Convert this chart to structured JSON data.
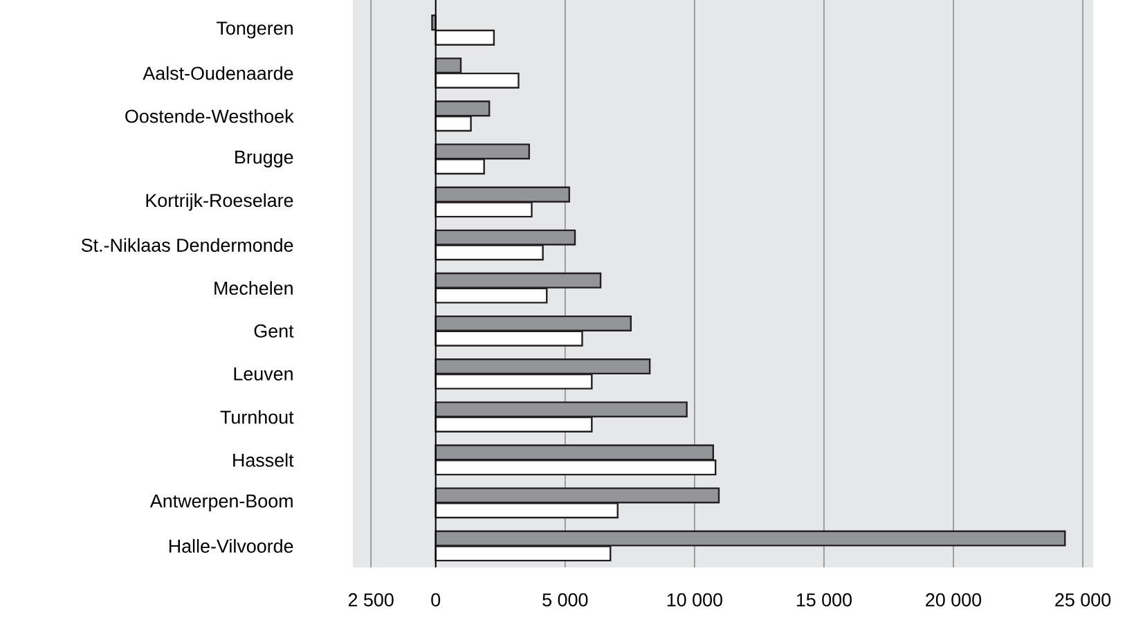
{
  "chart_data": {
    "type": "bar",
    "orientation": "horizontal",
    "categories": [
      "Tongeren",
      "Aalst-Oudenaarde",
      "Oostende-Westhoek",
      "Brugge",
      "Kortrijk-Roeselare",
      "St.-Niklaas Dendermonde",
      "Mechelen",
      "Gent",
      "Leuven",
      "Turnhout",
      "Hasselt",
      "Antwerpen-Boom",
      "Halle-Vilvoorde"
    ],
    "series": [
      {
        "color": "#939598",
        "values": [
          -140,
          970,
          2070,
          3610,
          5160,
          5380,
          6370,
          7540,
          8270,
          9700,
          10720,
          10940,
          24310
        ]
      },
      {
        "color": "#ffffff",
        "values": [
          2250,
          3200,
          1360,
          1870,
          3710,
          4140,
          4290,
          5660,
          6030,
          6030,
          10810,
          7030,
          6750
        ]
      }
    ],
    "xlim": [
      -3200,
      25400
    ],
    "xticks": [
      {
        "value": -2500,
        "label": "2 500"
      },
      0,
      {
        "value": 5000,
        "label": "5 000"
      },
      {
        "value": 10000,
        "label": "10 000"
      },
      {
        "value": 15000,
        "label": "15 000"
      },
      {
        "value": 20000,
        "label": "20 000"
      },
      {
        "value": 25000,
        "label": "25 000"
      }
    ],
    "grid": "x"
  }
}
